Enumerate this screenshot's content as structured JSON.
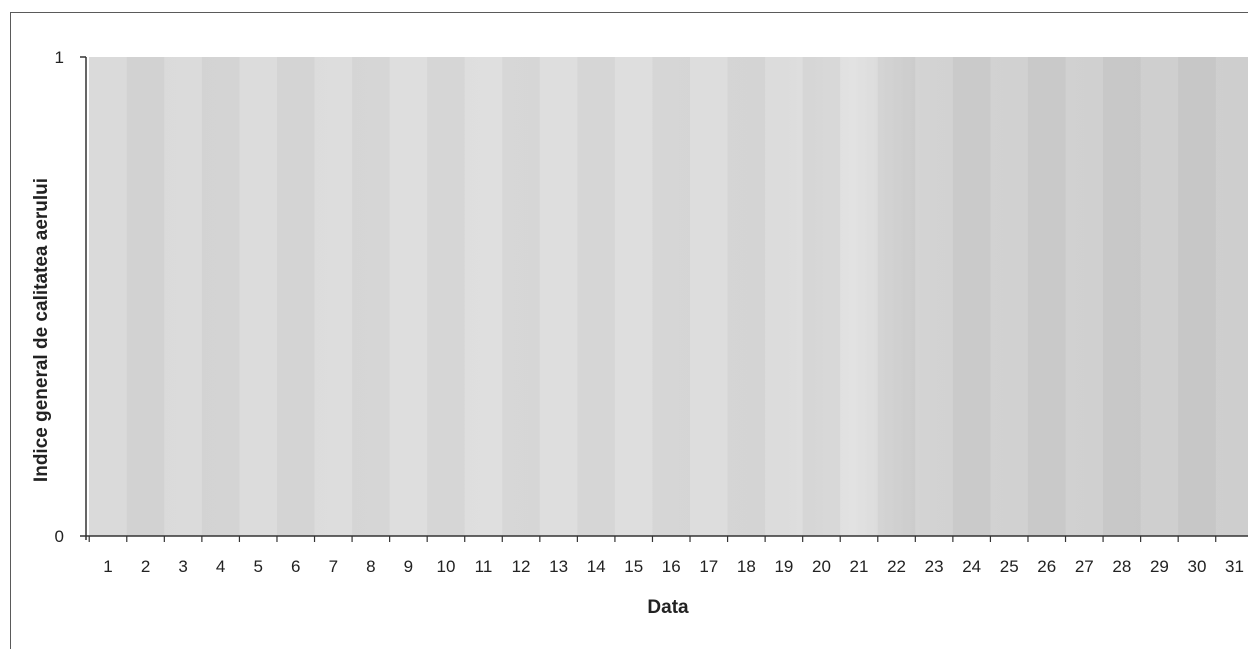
{
  "chart_data": {
    "type": "bar",
    "title": "",
    "xlabel": "Data",
    "ylabel": "Indice general de calitatea aerului",
    "categories": [
      "1",
      "2",
      "3",
      "4",
      "5",
      "6",
      "7",
      "8",
      "9",
      "10",
      "11",
      "12",
      "13",
      "14",
      "15",
      "16",
      "17",
      "18",
      "19",
      "20",
      "21",
      "22",
      "23",
      "24",
      "25",
      "26",
      "27",
      "28",
      "29",
      "30",
      "31"
    ],
    "y_ticks": [
      "0",
      "1"
    ],
    "ylim": [
      0,
      1
    ],
    "series": [
      {
        "values": [
          1,
          1,
          1,
          1,
          1,
          1,
          1,
          1,
          1,
          1,
          1,
          1,
          1,
          1,
          1,
          1,
          1,
          1,
          1,
          1,
          1,
          1,
          1,
          1,
          1,
          1,
          1,
          1,
          1,
          1,
          1
        ]
      }
    ],
    "grid": false,
    "legend": "none",
    "colors": {
      "bar_light": "#d9d9d9",
      "bar_dark": "#c4c4c4",
      "axis": "#333333"
    }
  }
}
